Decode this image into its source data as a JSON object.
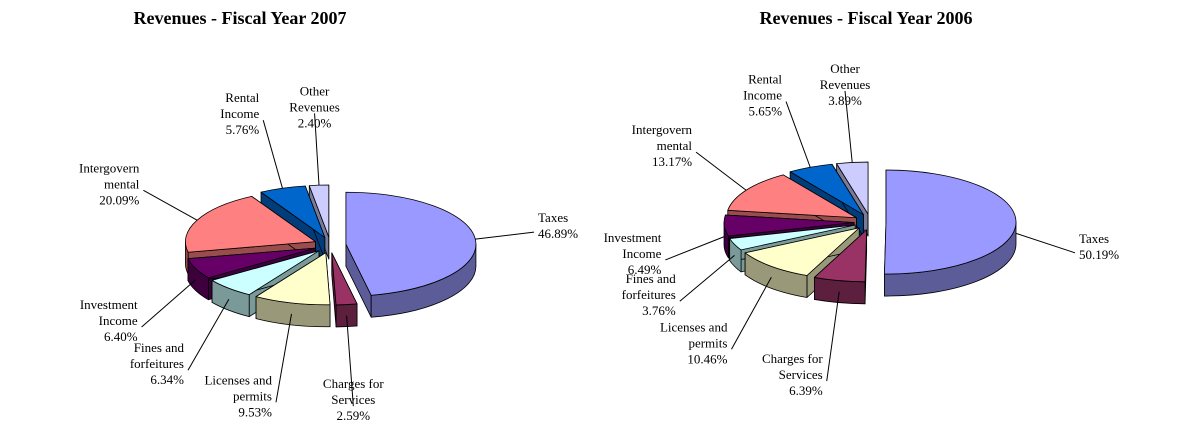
{
  "chart_data": [
    {
      "type": "pie",
      "title": "Revenues - Fiscal Year 2007",
      "categories": [
        "Taxes",
        "Charges for Services",
        "Licenses and permits",
        "Fines and forfeitures",
        "Investment Income",
        "Intergovern mental",
        "Rental Income",
        "Other Revenues"
      ],
      "values": [
        46.89,
        2.59,
        9.53,
        6.34,
        6.4,
        20.09,
        5.76,
        2.4
      ],
      "value_labels": [
        "46.89%",
        "2.59%",
        "9.53%",
        "6.34%",
        "6.40%",
        "20.09%",
        "5.76%",
        "2.40%"
      ],
      "colors": [
        "#9999ff",
        "#993366",
        "#ffffcc",
        "#ccffff",
        "#660066",
        "#ff8080",
        "#0066cc",
        "#ccccff"
      ]
    },
    {
      "type": "pie",
      "title": "Revenues - Fiscal Year 2006",
      "categories": [
        "Taxes",
        "Charges for Services",
        "Licenses and permits",
        "Fines and forfeitures",
        "Investment Income",
        "Intergovern mental",
        "Rental Income",
        "Other Revenues"
      ],
      "values": [
        50.19,
        6.39,
        10.46,
        3.76,
        6.49,
        13.17,
        5.65,
        3.89
      ],
      "value_labels": [
        "50.19%",
        "6.39%",
        "10.46%",
        "3.76%",
        "6.49%",
        "13.17%",
        "5.65%",
        "3.89%"
      ],
      "colors": [
        "#9999ff",
        "#993366",
        "#ffffcc",
        "#ccffff",
        "#660066",
        "#ff8080",
        "#0066cc",
        "#ccccff"
      ]
    }
  ]
}
